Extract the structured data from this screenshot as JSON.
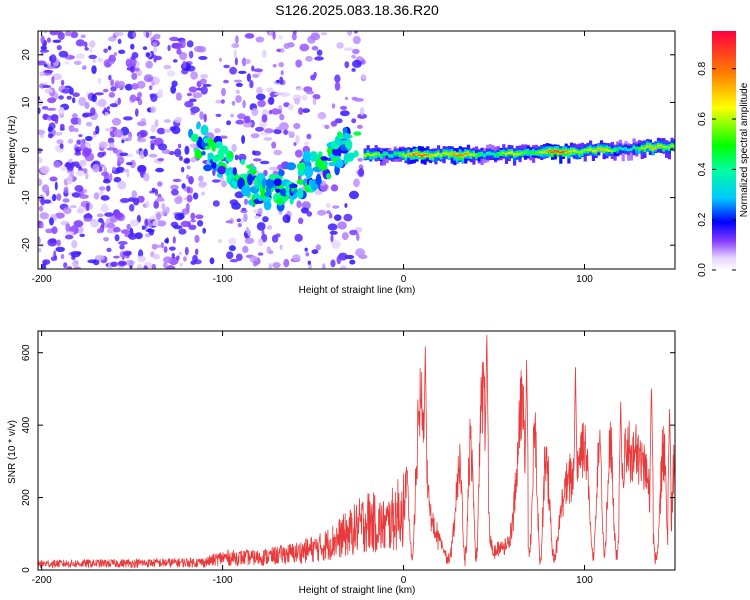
{
  "title": "S126.2025.083.18.36.R20",
  "colors": {
    "snr_line": "#e83a3a",
    "colormap": [
      "#ffffff",
      "#f0e6ff",
      "#c9a6ff",
      "#8a3dff",
      "#5a00e6",
      "#0000ff",
      "#00e0ff",
      "#00ff40",
      "#ffff00",
      "#ff8000",
      "#ff0040"
    ]
  },
  "chart_data": [
    {
      "type": "heatmap",
      "title": "S126.2025.083.18.36.R20",
      "xlabel": "Height of straight line (km)",
      "ylabel": "Frequency (Hz)",
      "xlim": [
        -202,
        150
      ],
      "ylim": [
        -25,
        25
      ],
      "x_ticks": [
        -200,
        -100,
        0,
        100
      ],
      "y_ticks": [
        -20,
        -10,
        0,
        10,
        20
      ],
      "colorbar": {
        "label": "Normalized spectral amplitude",
        "range": [
          0,
          0.95
        ],
        "ticks": [
          0.0,
          0.2,
          0.4,
          0.6,
          0.8
        ]
      },
      "ridge": {
        "description": "narrow high-amplitude band near 0 Hz for heights above about -22 km",
        "x_start": -22,
        "freq_points": [
          [
            -22,
            -1
          ],
          [
            0,
            -1
          ],
          [
            50,
            -0.8
          ],
          [
            100,
            -0.2
          ],
          [
            150,
            0.8
          ]
        ],
        "peak_amplitude": 0.95
      },
      "noise_region": {
        "x_range": [
          -202,
          -22
        ],
        "freq_range": [
          -25,
          25
        ],
        "typical_amplitude": 0.15
      },
      "diagonal_track": {
        "points": [
          [
            -115,
            2
          ],
          [
            -95,
            -4
          ],
          [
            -75,
            -10
          ],
          [
            -58,
            -6
          ],
          [
            -40,
            -2
          ],
          [
            -28,
            2
          ]
        ],
        "amplitude": 0.4
      }
    },
    {
      "type": "line",
      "xlabel": "Height of straight line (km)",
      "ylabel": "SNR (10 * v/v)",
      "xlim": [
        -202,
        150
      ],
      "ylim": [
        0,
        660
      ],
      "x_ticks": [
        -200,
        -100,
        0,
        100
      ],
      "y_ticks": [
        0,
        200,
        400,
        600
      ],
      "series": [
        {
          "envelope": [
            [
              -202,
              20
            ],
            [
              -150,
              22
            ],
            [
              -110,
              25
            ],
            [
              -100,
              40
            ],
            [
              -80,
              40
            ],
            [
              -60,
              55
            ],
            [
              -45,
              75
            ],
            [
              -30,
              120
            ],
            [
              -20,
              160
            ],
            [
              -10,
              140
            ],
            [
              0,
              200
            ],
            [
              6,
              350
            ],
            [
              12,
              560
            ],
            [
              20,
              360
            ],
            [
              30,
              280
            ],
            [
              40,
              380
            ],
            [
              46,
              560
            ],
            [
              55,
              330
            ],
            [
              65,
              460
            ],
            [
              75,
              340
            ],
            [
              85,
              300
            ],
            [
              95,
              330
            ],
            [
              105,
              380
            ],
            [
              115,
              360
            ],
            [
              125,
              330
            ],
            [
              135,
              320
            ],
            [
              145,
              340
            ],
            [
              150,
              300
            ]
          ],
          "peaks": [
            [
              12,
              625
            ],
            [
              46,
              665
            ],
            [
              68,
              580
            ],
            [
              95,
              560
            ],
            [
              120,
              470
            ],
            [
              137,
              520
            ],
            [
              147,
              450
            ]
          ]
        }
      ]
    }
  ]
}
